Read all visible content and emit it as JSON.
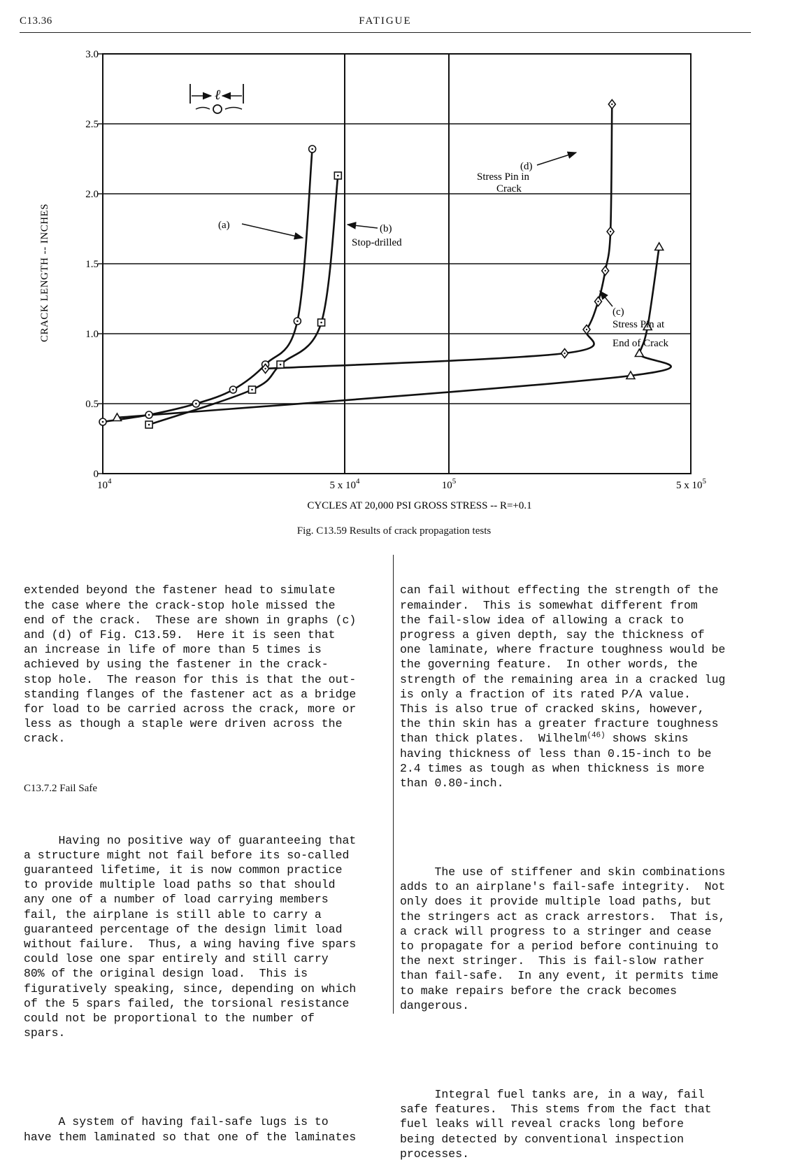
{
  "header": {
    "page_id": "C13.36",
    "running_title": "FATIGUE"
  },
  "figure": {
    "caption": "Fig. C13.59 Results of crack propagation tests",
    "inset_symbol": "ℓ",
    "annotations": {
      "a": "(a)",
      "b_1": "(b)",
      "b_2": "Stop-drilled",
      "c_1": "(c)",
      "c_2": "Stress Pin at",
      "c_3": "End of Crack",
      "d_1": "(d)",
      "d_2": "Stress Pin in",
      "d_3": "Crack"
    }
  },
  "chart_data": {
    "type": "line",
    "title": "",
    "xlabel": "CYCLES AT 20,000 PSI GROSS STRESS -- R=+0.1",
    "ylabel": "CRACK LENGTH -- INCHES",
    "x_scale": "log",
    "xlim": [
      10000,
      500000
    ],
    "ylim": [
      0,
      3.0
    ],
    "x_ticks": [
      {
        "value": 10000,
        "base": "10",
        "exp": "4"
      },
      {
        "value": 50000,
        "base": "5 x 10",
        "exp": "4"
      },
      {
        "value": 100000,
        "base": "10",
        "exp": "5"
      },
      {
        "value": 500000,
        "base": "5 x 10",
        "exp": "5"
      }
    ],
    "y_ticks": [
      {
        "value": 0,
        "label": "0"
      },
      {
        "value": 0.5,
        "label": "0.5"
      },
      {
        "value": 1.0,
        "label": "1.0"
      },
      {
        "value": 1.5,
        "label": "1.5"
      },
      {
        "value": 2.0,
        "label": "2.0"
      },
      {
        "value": 2.5,
        "label": "2.5"
      },
      {
        "value": 3.0,
        "label": "3.0"
      }
    ],
    "grid": true,
    "series": [
      {
        "marker": "circle-dot",
        "points": [
          [
            10000,
            0.37
          ],
          [
            13600,
            0.42
          ],
          [
            18600,
            0.5
          ],
          [
            23800,
            0.6
          ],
          [
            29500,
            0.78
          ],
          [
            36500,
            1.09
          ],
          [
            40300,
            2.32
          ]
        ]
      },
      {
        "marker": "square-dot",
        "points": [
          [
            13600,
            0.35
          ],
          [
            27000,
            0.6
          ],
          [
            32600,
            0.78
          ],
          [
            42800,
            1.08
          ],
          [
            47800,
            2.13
          ]
        ]
      },
      {
        "marker": "triangle",
        "points": [
          [
            11000,
            0.4
          ],
          [
            335000,
            0.7
          ],
          [
            355000,
            0.86
          ],
          [
            375000,
            1.05
          ],
          [
            405000,
            1.62
          ]
        ]
      },
      {
        "marker": "diamond",
        "points": [
          [
            29500,
            0.75
          ],
          [
            216000,
            0.86
          ],
          [
            250000,
            1.03
          ],
          [
            270000,
            1.23
          ],
          [
            283000,
            1.45
          ],
          [
            293000,
            1.73
          ],
          [
            296000,
            2.64
          ]
        ]
      }
    ]
  },
  "body": {
    "left": {
      "p1": [
        "extended beyond the fastener head to simulate",
        "the case where the crack-stop hole missed the",
        "end of the crack.  These are shown in graphs (c)",
        "and (d) of Fig. C13.59.  Here it is seen that",
        "an increase in life of more than 5 times is",
        "achieved by using the fastener in the crack-",
        "stop hole.  The reason for this is that the out-",
        "standing flanges of the fastener act as a bridge",
        "for load to be carried across the crack, more or",
        "less as though a staple were driven across the",
        "crack."
      ],
      "section_heading": "C13.7.2 Fail Safe",
      "p2": [
        "     Having no positive way of guaranteeing that",
        "a structure might not fail before its so-called",
        "guaranteed lifetime, it is now common practice",
        "to provide multiple load paths so that should",
        "any one of a number of load carrying members",
        "fail, the airplane is still able to carry a",
        "guaranteed percentage of the design limit load",
        "without failure.  Thus, a wing having five spars",
        "could lose one spar entirely and still carry",
        "80% of the original design load.  This is",
        "figuratively speaking, since, depending on which",
        "of the 5 spars failed, the torsional resistance",
        "could not be proportional to the number of",
        "spars."
      ],
      "p3": [
        "     A system of having fail-safe lugs is to",
        "have them laminated so that one of the laminates"
      ]
    },
    "right": {
      "p1_before": [
        "can fail without effecting the strength of the",
        "remainder.  This is somewhat different from",
        "the fail-slow idea of allowing a crack to",
        "progress a given depth, say the thickness of",
        "one laminate, where fracture toughness would be",
        "the governing feature.  In other words, the",
        "strength of the remaining area in a cracked lug",
        "is only a fraction of its rated P/A value.",
        "This is also true of cracked skins, however,",
        "the thin skin has a greater fracture toughness",
        "than thick plates.  Wilhelm"
      ],
      "ref": "(46)",
      "ref_after": " shows skins",
      "p1_after": [
        "having thickness of less than 0.15-inch to be",
        "2.4 times as tough as when thickness is more",
        "than 0.80-inch."
      ],
      "p2": [
        "     The use of stiffener and skin combinations",
        "adds to an airplane's fail-safe integrity.  Not",
        "only does it provide multiple load paths, but",
        "the stringers act as crack arrestors.  That is,",
        "a crack will progress to a stringer and cease",
        "to propagate for a period before continuing to",
        "the next stringer.  This is fail-slow rather",
        "than fail-safe.  In any event, it permits time",
        "to make repairs before the crack becomes",
        "dangerous."
      ],
      "p3": [
        "     Integral fuel tanks are, in a way, fail",
        "safe features.  This stems from the fact that",
        "fuel leaks will reveal cracks long before",
        "being detected by conventional inspection",
        "processes."
      ]
    }
  }
}
